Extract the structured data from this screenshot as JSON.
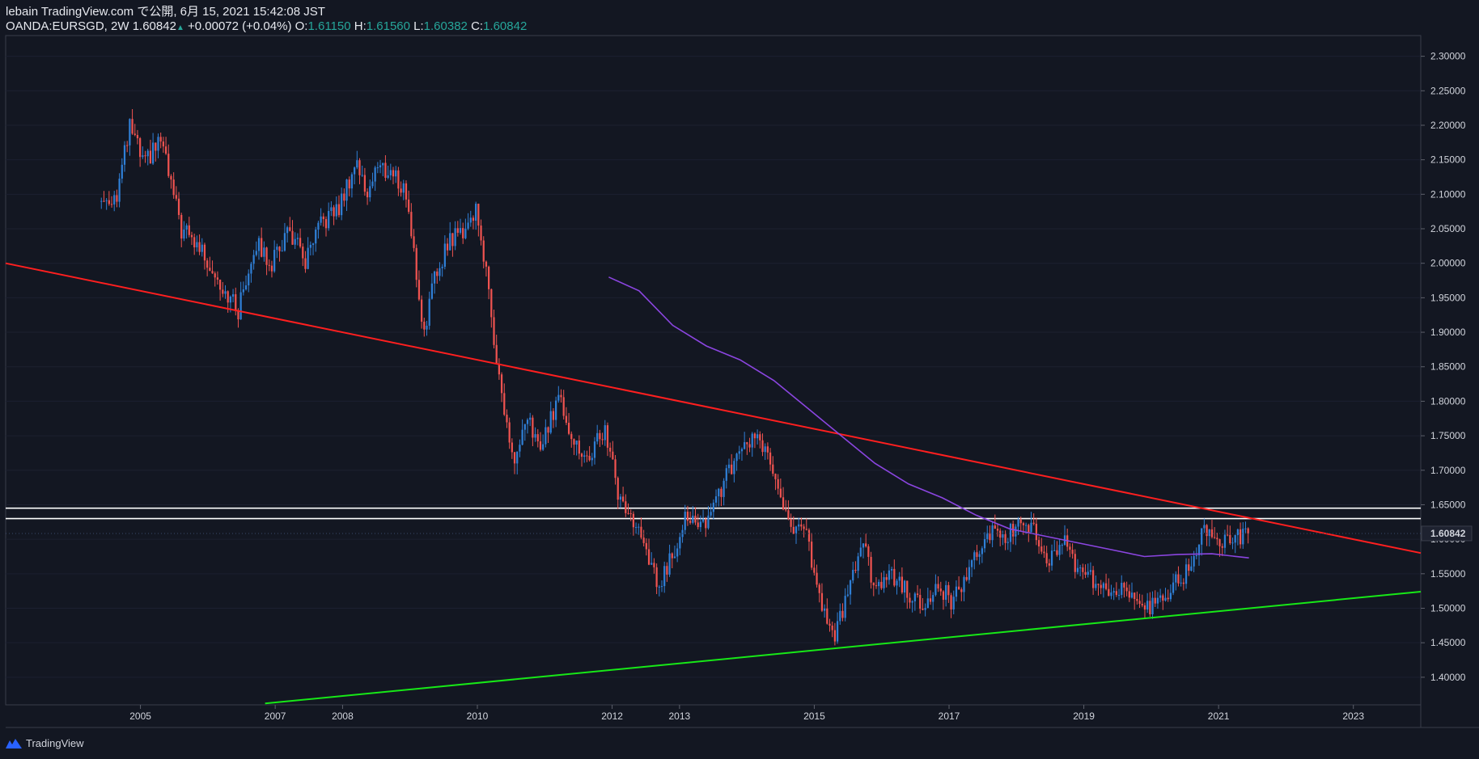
{
  "header": {
    "published": "lebain TradingView.com で公開, 6月 15, 2021 15:42:08 JST",
    "symbol": "OANDA:EURSGD, 2W",
    "last": "1.60842",
    "up_arrow": "▲",
    "change": "+0.00072 (+0.04%)",
    "o_label": "O:",
    "o_value": "1.61150",
    "h_label": "H:",
    "h_value": "1.61560",
    "l_label": "L:",
    "l_value": "1.60382",
    "c_label": "C:",
    "c_value": "1.60842"
  },
  "footer": {
    "brand": "TradingView",
    "logo_icon": "tradingview-logo-icon"
  },
  "colors": {
    "background": "#131722",
    "up": "#2f7fd6",
    "down": "#ef5350",
    "resistance": "#ff1f1f",
    "support": "#17e817",
    "ma": "#8b45e0",
    "band": "#ffffff"
  },
  "chart_data": {
    "type": "candlestick",
    "symbol": "OANDA:EURSGD",
    "interval": "2W",
    "last_price": 1.60842,
    "last_price_label": "1.60842",
    "ylim": [
      1.36,
      2.33
    ],
    "xlim": [
      2003.0,
      2024.0
    ],
    "y_ticks": [
      "2.30000",
      "2.25000",
      "2.20000",
      "2.15000",
      "2.10000",
      "2.05000",
      "2.00000",
      "1.95000",
      "1.90000",
      "1.85000",
      "1.80000",
      "1.75000",
      "1.70000",
      "1.65000",
      "1.60000",
      "1.55000",
      "1.50000",
      "1.45000",
      "1.40000"
    ],
    "x_ticks": [
      {
        "label": "2005",
        "x": 2005.0
      },
      {
        "label": "2007",
        "x": 2007.0
      },
      {
        "label": "2008",
        "x": 2008.0
      },
      {
        "label": "2010",
        "x": 2010.0
      },
      {
        "label": "2012",
        "x": 2012.0
      },
      {
        "label": "2013",
        "x": 2013.0
      },
      {
        "label": "2015",
        "x": 2015.0
      },
      {
        "label": "2017",
        "x": 2017.0
      },
      {
        "label": "2019",
        "x": 2019.0
      },
      {
        "label": "2021",
        "x": 2021.0
      },
      {
        "label": "2023",
        "x": 2023.0
      }
    ],
    "price_path": [
      [
        2004.42,
        2.09
      ],
      [
        2004.65,
        2.1
      ],
      [
        2004.85,
        2.2
      ],
      [
        2005.05,
        2.14
      ],
      [
        2005.3,
        2.18
      ],
      [
        2005.6,
        2.05
      ],
      [
        2005.9,
        2.02
      ],
      [
        2006.2,
        1.97
      ],
      [
        2006.45,
        1.93
      ],
      [
        2006.7,
        2.03
      ],
      [
        2006.95,
        2.0
      ],
      [
        2007.2,
        2.05
      ],
      [
        2007.45,
        2.0
      ],
      [
        2007.7,
        2.06
      ],
      [
        2007.95,
        2.08
      ],
      [
        2008.2,
        2.15
      ],
      [
        2008.35,
        2.1
      ],
      [
        2008.5,
        2.14
      ],
      [
        2008.75,
        2.13
      ],
      [
        2008.95,
        2.1
      ],
      [
        2009.2,
        1.9
      ],
      [
        2009.35,
        1.97
      ],
      [
        2009.55,
        2.03
      ],
      [
        2009.8,
        2.05
      ],
      [
        2010.0,
        2.08
      ],
      [
        2010.2,
        1.93
      ],
      [
        2010.4,
        1.78
      ],
      [
        2010.55,
        1.71
      ],
      [
        2010.75,
        1.77
      ],
      [
        2010.95,
        1.73
      ],
      [
        2011.2,
        1.81
      ],
      [
        2011.45,
        1.74
      ],
      [
        2011.6,
        1.71
      ],
      [
        2011.9,
        1.76
      ],
      [
        2012.1,
        1.66
      ],
      [
        2012.3,
        1.63
      ],
      [
        2012.5,
        1.58
      ],
      [
        2012.7,
        1.53
      ],
      [
        2012.9,
        1.58
      ],
      [
        2013.1,
        1.64
      ],
      [
        2013.3,
        1.61
      ],
      [
        2013.5,
        1.65
      ],
      [
        2013.7,
        1.69
      ],
      [
        2013.9,
        1.72
      ],
      [
        2014.1,
        1.75
      ],
      [
        2014.3,
        1.72
      ],
      [
        2014.5,
        1.66
      ],
      [
        2014.7,
        1.62
      ],
      [
        2014.9,
        1.6
      ],
      [
        2015.1,
        1.5
      ],
      [
        2015.3,
        1.46
      ],
      [
        2015.5,
        1.52
      ],
      [
        2015.7,
        1.6
      ],
      [
        2015.9,
        1.53
      ],
      [
        2016.1,
        1.55
      ],
      [
        2016.35,
        1.53
      ],
      [
        2016.6,
        1.5
      ],
      [
        2016.85,
        1.53
      ],
      [
        2017.05,
        1.51
      ],
      [
        2017.3,
        1.55
      ],
      [
        2017.55,
        1.61
      ],
      [
        2017.8,
        1.6
      ],
      [
        2018.0,
        1.62
      ],
      [
        2018.25,
        1.61
      ],
      [
        2018.45,
        1.57
      ],
      [
        2018.7,
        1.6
      ],
      [
        2018.95,
        1.55
      ],
      [
        2019.2,
        1.54
      ],
      [
        2019.45,
        1.52
      ],
      [
        2019.7,
        1.53
      ],
      [
        2019.95,
        1.5
      ],
      [
        2020.2,
        1.52
      ],
      [
        2020.4,
        1.54
      ],
      [
        2020.6,
        1.56
      ],
      [
        2020.8,
        1.62
      ],
      [
        2021.0,
        1.6
      ],
      [
        2021.2,
        1.6
      ],
      [
        2021.4,
        1.61
      ],
      [
        2021.46,
        1.608
      ]
    ],
    "lines": [
      {
        "name": "resistance",
        "color": "#ff1f1f",
        "points": [
          [
            2003.0,
            2.0
          ],
          [
            2024.0,
            1.58
          ]
        ]
      },
      {
        "name": "support",
        "color": "#17e817",
        "points": [
          [
            2006.85,
            1.362
          ],
          [
            2024.0,
            1.524
          ]
        ]
      },
      {
        "name": "horizontal-upper",
        "color": "#ffffff",
        "points": [
          [
            2003.0,
            1.645
          ],
          [
            2024.0,
            1.645
          ]
        ]
      },
      {
        "name": "horizontal-lower",
        "color": "#ffffff",
        "points": [
          [
            2003.0,
            1.63
          ],
          [
            2024.0,
            1.63
          ]
        ]
      }
    ],
    "moving_average": [
      [
        2011.95,
        1.98
      ],
      [
        2012.4,
        1.96
      ],
      [
        2012.9,
        1.91
      ],
      [
        2013.4,
        1.88
      ],
      [
        2013.9,
        1.86
      ],
      [
        2014.4,
        1.83
      ],
      [
        2014.9,
        1.79
      ],
      [
        2015.4,
        1.75
      ],
      [
        2015.9,
        1.71
      ],
      [
        2016.4,
        1.68
      ],
      [
        2016.9,
        1.66
      ],
      [
        2017.4,
        1.635
      ],
      [
        2017.9,
        1.615
      ],
      [
        2018.4,
        1.605
      ],
      [
        2018.9,
        1.595
      ],
      [
        2019.4,
        1.585
      ],
      [
        2019.9,
        1.575
      ],
      [
        2020.4,
        1.578
      ],
      [
        2020.9,
        1.579
      ],
      [
        2021.45,
        1.573
      ]
    ]
  }
}
